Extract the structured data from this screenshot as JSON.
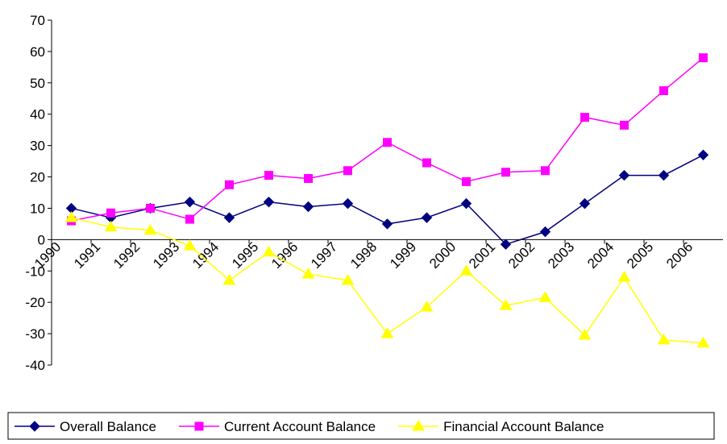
{
  "chart_data": {
    "type": "line",
    "categories": [
      "1990",
      "1991",
      "1992",
      "1993",
      "1994",
      "1995",
      "1996",
      "1997",
      "1998",
      "1999",
      "2000",
      "2001",
      "2002",
      "2003",
      "2004",
      "2005",
      "2006"
    ],
    "series": [
      {
        "name": "Overall Balance",
        "color": "#000080",
        "marker": "diamond",
        "values": [
          10,
          7,
          10,
          12,
          7,
          12,
          10.5,
          11.5,
          5,
          7,
          11.5,
          -1.5,
          2.5,
          11.5,
          20.5,
          20.5,
          27
        ]
      },
      {
        "name": "Current Account Balance",
        "color": "#ff00ff",
        "marker": "square",
        "values": [
          6,
          8.5,
          10,
          6.5,
          17.5,
          20.5,
          19.5,
          22,
          31,
          24.5,
          18.5,
          21.5,
          22,
          39,
          36.5,
          47.5,
          58
        ]
      },
      {
        "name": "Financial Account Balance",
        "color": "#ffff00",
        "marker": "triangle",
        "values": [
          7,
          4,
          3,
          -2,
          -13,
          -4,
          -11,
          -13,
          -30,
          -21.5,
          -10,
          -21,
          -18.5,
          -30.5,
          -12,
          -32,
          -33
        ]
      }
    ],
    "ylim": [
      -40,
      70
    ],
    "yticks": [
      -40,
      -30,
      -20,
      -10,
      0,
      10,
      20,
      30,
      40,
      50,
      60,
      70
    ],
    "grid": false,
    "legend": "bottom"
  }
}
